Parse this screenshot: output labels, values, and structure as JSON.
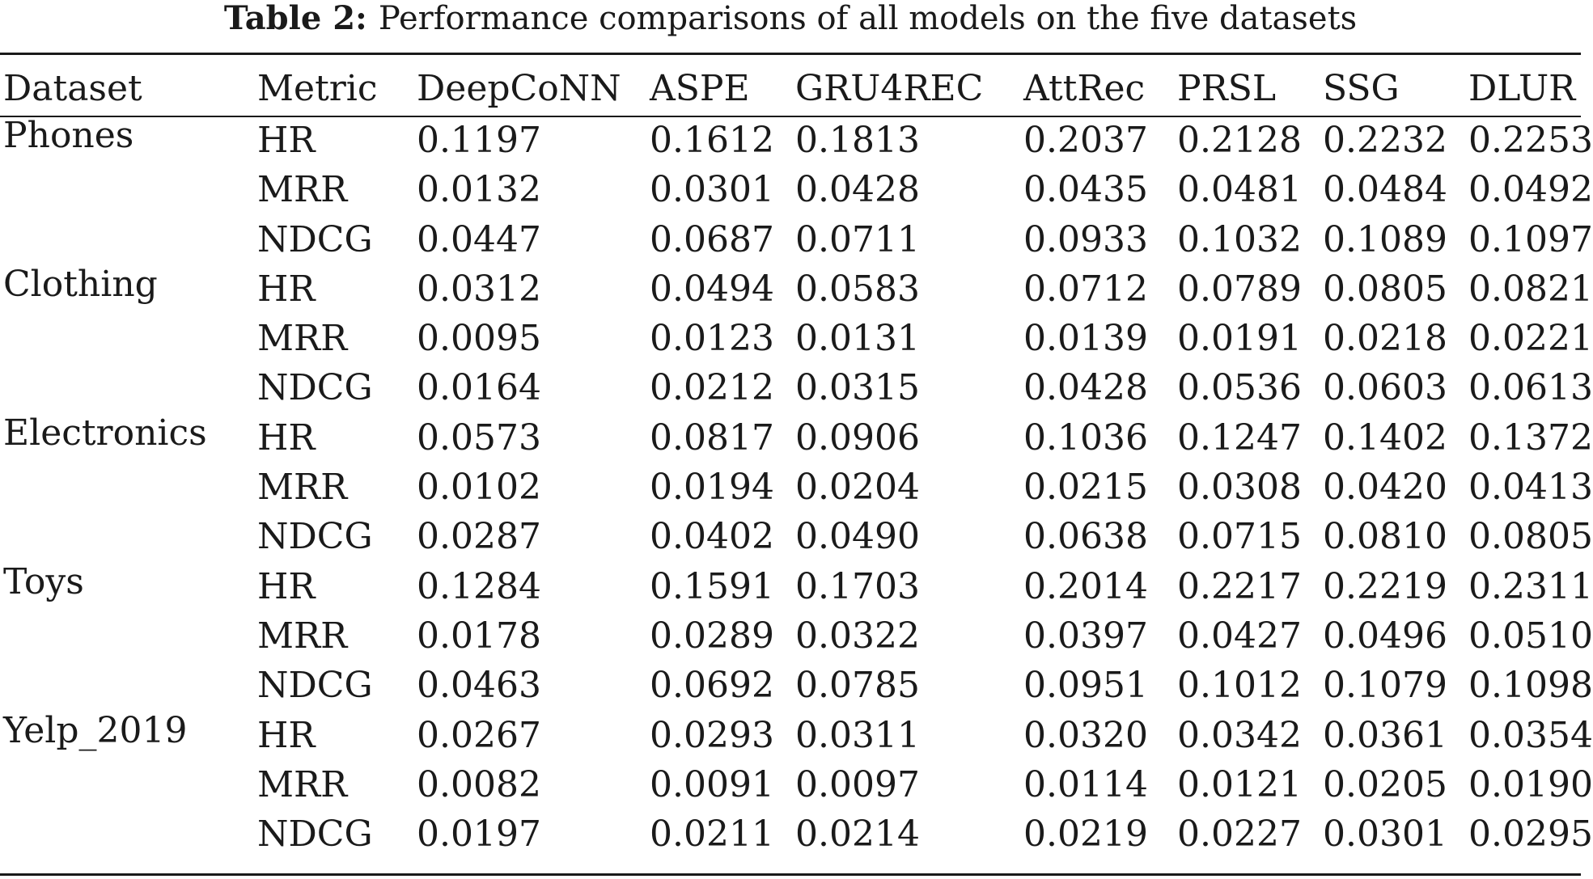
{
  "caption": {
    "label": "Table 2:",
    "text": "Performance comparisons of all models on the five datasets"
  },
  "table": {
    "headers": [
      "Dataset",
      "Metric",
      "DeepCoNN",
      "ASPE",
      "GRU4REC",
      "AttRec",
      "PRSL",
      "SSG",
      "DLUR"
    ],
    "rows": [
      [
        "Phones",
        "HR",
        "0.1197",
        "0.1612",
        "0.1813",
        "0.2037",
        "0.2128",
        "0.2232",
        "0.2253"
      ],
      [
        "",
        "MRR",
        "0.0132",
        "0.0301",
        "0.0428",
        "0.0435",
        "0.0481",
        "0.0484",
        "0.0492"
      ],
      [
        "",
        "NDCG",
        "0.0447",
        "0.0687",
        "0.0711",
        "0.0933",
        "0.1032",
        "0.1089",
        "0.1097"
      ],
      [
        "Clothing",
        "HR",
        "0.0312",
        "0.0494",
        "0.0583",
        "0.0712",
        "0.0789",
        "0.0805",
        "0.0821"
      ],
      [
        "",
        "MRR",
        "0.0095",
        "0.0123",
        "0.0131",
        "0.0139",
        "0.0191",
        "0.0218",
        "0.0221"
      ],
      [
        "",
        "NDCG",
        "0.0164",
        "0.0212",
        "0.0315",
        "0.0428",
        "0.0536",
        "0.0603",
        "0.0613"
      ],
      [
        "Electronics",
        "HR",
        "0.0573",
        "0.0817",
        "0.0906",
        "0.1036",
        "0.1247",
        "0.1402",
        "0.1372"
      ],
      [
        "",
        "MRR",
        "0.0102",
        "0.0194",
        "0.0204",
        "0.0215",
        "0.0308",
        "0.0420",
        "0.0413"
      ],
      [
        "",
        "NDCG",
        "0.0287",
        "0.0402",
        "0.0490",
        "0.0638",
        "0.0715",
        "0.0810",
        "0.0805"
      ],
      [
        "Toys",
        "HR",
        "0.1284",
        "0.1591",
        "0.1703",
        "0.2014",
        "0.2217",
        "0.2219",
        "0.2311"
      ],
      [
        "",
        "MRR",
        "0.0178",
        "0.0289",
        "0.0322",
        "0.0397",
        "0.0427",
        "0.0496",
        "0.0510"
      ],
      [
        "",
        "NDCG",
        "0.0463",
        "0.0692",
        "0.0785",
        "0.0951",
        "0.1012",
        "0.1079",
        "0.1098"
      ],
      [
        "Yelp_2019",
        "HR",
        "0.0267",
        "0.0293",
        "0.0311",
        "0.0320",
        "0.0342",
        "0.0361",
        "0.0354"
      ],
      [
        "",
        "MRR",
        "0.0082",
        "0.0091",
        "0.0097",
        "0.0114",
        "0.0121",
        "0.0205",
        "0.0190"
      ],
      [
        "",
        "NDCG",
        "0.0197",
        "0.0211",
        "0.0214",
        "0.0219",
        "0.0227",
        "0.0301",
        "0.0295"
      ]
    ]
  }
}
